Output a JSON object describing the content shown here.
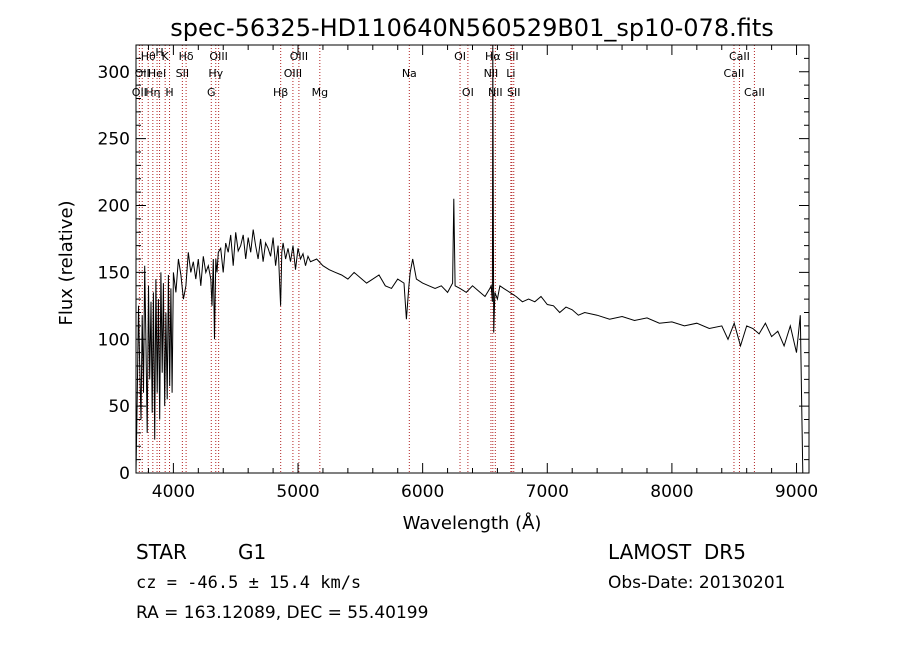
{
  "chart_data": {
    "type": "line",
    "title": "spec-56325-HD110640N560529B01_sp10-078.fits",
    "xlabel": "Wavelength (Å)",
    "ylabel": "Flux (relative)",
    "xlim": [
      3700,
      9100
    ],
    "ylim": [
      0,
      320
    ],
    "xticks": [
      4000,
      5000,
      6000,
      7000,
      8000,
      9000
    ],
    "yticks": [
      0,
      50,
      100,
      150,
      200,
      250,
      300
    ],
    "grid": false,
    "line_color": "#000000",
    "marker_line_color": "#b22222",
    "spectrum": {
      "x": [
        3700,
        3710,
        3720,
        3730,
        3740,
        3750,
        3760,
        3770,
        3780,
        3790,
        3800,
        3810,
        3820,
        3830,
        3840,
        3850,
        3860,
        3870,
        3880,
        3890,
        3900,
        3910,
        3920,
        3930,
        3940,
        3950,
        3960,
        3970,
        3980,
        3990,
        4000,
        4020,
        4040,
        4060,
        4080,
        4100,
        4120,
        4140,
        4160,
        4180,
        4200,
        4220,
        4240,
        4260,
        4280,
        4300,
        4310,
        4320,
        4330,
        4340,
        4350,
        4360,
        4380,
        4400,
        4420,
        4440,
        4460,
        4480,
        4500,
        4520,
        4540,
        4560,
        4580,
        4600,
        4620,
        4640,
        4660,
        4680,
        4700,
        4720,
        4740,
        4760,
        4780,
        4800,
        4820,
        4840,
        4860,
        4870,
        4880,
        4900,
        4920,
        4940,
        4960,
        4980,
        5000,
        5020,
        5040,
        5060,
        5080,
        5100,
        5150,
        5200,
        5250,
        5300,
        5350,
        5400,
        5450,
        5500,
        5550,
        5600,
        5650,
        5700,
        5750,
        5800,
        5850,
        5870,
        5890,
        5900,
        5920,
        5950,
        6000,
        6050,
        6100,
        6150,
        6200,
        6240,
        6250,
        6260,
        6300,
        6350,
        6400,
        6450,
        6500,
        6540,
        6550,
        6560,
        6563,
        6570,
        6580,
        6600,
        6620,
        6650,
        6700,
        6750,
        6800,
        6850,
        6900,
        6950,
        7000,
        7050,
        7100,
        7150,
        7200,
        7250,
        7300,
        7400,
        7500,
        7600,
        7700,
        7800,
        7900,
        8000,
        8100,
        8200,
        8300,
        8400,
        8450,
        8500,
        8550,
        8600,
        8650,
        8700,
        8750,
        8800,
        8850,
        8900,
        8950,
        9000,
        9030,
        9040,
        9050
      ],
      "y": [
        0,
        55,
        125,
        80,
        40,
        118,
        60,
        155,
        95,
        30,
        140,
        70,
        128,
        45,
        135,
        25,
        145,
        60,
        130,
        40,
        150,
        75,
        142,
        50,
        120,
        55,
        148,
        65,
        138,
        60,
        150,
        135,
        160,
        148,
        130,
        140,
        165,
        150,
        158,
        145,
        160,
        140,
        162,
        150,
        155,
        145,
        125,
        160,
        100,
        160,
        150,
        165,
        168,
        150,
        172,
        165,
        178,
        155,
        180,
        166,
        170,
        178,
        160,
        176,
        165,
        182,
        170,
        160,
        175,
        158,
        172,
        168,
        162,
        176,
        155,
        170,
        125,
        165,
        172,
        160,
        168,
        158,
        170,
        152,
        168,
        160,
        164,
        155,
        162,
        158,
        160,
        155,
        152,
        150,
        148,
        145,
        150,
        146,
        142,
        145,
        148,
        140,
        138,
        145,
        142,
        115,
        140,
        150,
        160,
        145,
        142,
        140,
        138,
        140,
        135,
        142,
        205,
        140,
        138,
        135,
        140,
        136,
        132,
        138,
        140,
        128,
        320,
        105,
        135,
        130,
        140,
        138,
        135,
        132,
        128,
        130,
        128,
        132,
        126,
        125,
        120,
        124,
        122,
        118,
        120,
        118,
        115,
        117,
        114,
        116,
        112,
        113,
        110,
        112,
        108,
        110,
        100,
        112,
        95,
        110,
        108,
        104,
        112,
        102,
        106,
        95,
        110,
        90,
        118,
        60,
        0
      ],
      "labels_in_data_space_note": ""
    },
    "lines": [
      {
        "wavelength": 3727,
        "labels": [
          "OII"
        ],
        "row": 3
      },
      {
        "wavelength": 3750,
        "labels": [
          "OII"
        ],
        "row": 2
      },
      {
        "wavelength": 3798,
        "labels": [
          "Hθ"
        ],
        "row": 1
      },
      {
        "wavelength": 3835,
        "labels": [
          "Hη"
        ],
        "row": 3
      },
      {
        "wavelength": 3869,
        "labels": [
          "HeI"
        ],
        "row": 2
      },
      {
        "wavelength": 3889,
        "labels": [
          "H"
        ],
        "row": 0
      },
      {
        "wavelength": 3934,
        "labels": [
          "K"
        ],
        "row": 1
      },
      {
        "wavelength": 3969,
        "labels": [
          "H"
        ],
        "row": 3
      },
      {
        "wavelength": 4072,
        "labels": [
          "SII"
        ],
        "row": 2
      },
      {
        "wavelength": 4102,
        "labels": [
          "Hδ"
        ],
        "row": 1
      },
      {
        "wavelength": 4304,
        "labels": [
          "G"
        ],
        "row": 3
      },
      {
        "wavelength": 4340,
        "labels": [
          "Hγ"
        ],
        "row": 2
      },
      {
        "wavelength": 4363,
        "labels": [
          "OIII"
        ],
        "row": 1
      },
      {
        "wavelength": 4861,
        "labels": [
          "Hβ"
        ],
        "row": 3
      },
      {
        "wavelength": 4959,
        "labels": [
          "OIII"
        ],
        "row": 2
      },
      {
        "wavelength": 5007,
        "labels": [
          "OIII"
        ],
        "row": 1
      },
      {
        "wavelength": 5175,
        "labels": [
          "Mg"
        ],
        "row": 3
      },
      {
        "wavelength": 5893,
        "labels": [
          "Na"
        ],
        "row": 2
      },
      {
        "wavelength": 6300,
        "labels": [
          "OI"
        ],
        "row": 1
      },
      {
        "wavelength": 6363,
        "labels": [
          "OI"
        ],
        "row": 3
      },
      {
        "wavelength": 6548,
        "labels": [
          "NII"
        ],
        "row": 2
      },
      {
        "wavelength": 6563,
        "labels": [
          "Hα"
        ],
        "row": 1
      },
      {
        "wavelength": 6583,
        "labels": [
          "NII"
        ],
        "row": 3
      },
      {
        "wavelength": 6708,
        "labels": [
          "Li"
        ],
        "row": 2
      },
      {
        "wavelength": 6716,
        "labels": [
          "SII"
        ],
        "row": 1
      },
      {
        "wavelength": 6731,
        "labels": [
          "SII"
        ],
        "row": 3
      },
      {
        "wavelength": 8498,
        "labels": [
          "CaII"
        ],
        "row": 2
      },
      {
        "wavelength": 8542,
        "labels": [
          "CaII"
        ],
        "row": 1
      },
      {
        "wavelength": 8662,
        "labels": [
          "CaII"
        ],
        "row": 3
      }
    ]
  },
  "info": {
    "object_class": "STAR",
    "subclass": "G1",
    "redshift": "cz = -46.5 ± 15.4 km/s",
    "survey": "LAMOST  DR5",
    "obs_date": "Obs-Date: 20130201",
    "coords": "RA = 163.12089, DEC =  55.40199"
  }
}
